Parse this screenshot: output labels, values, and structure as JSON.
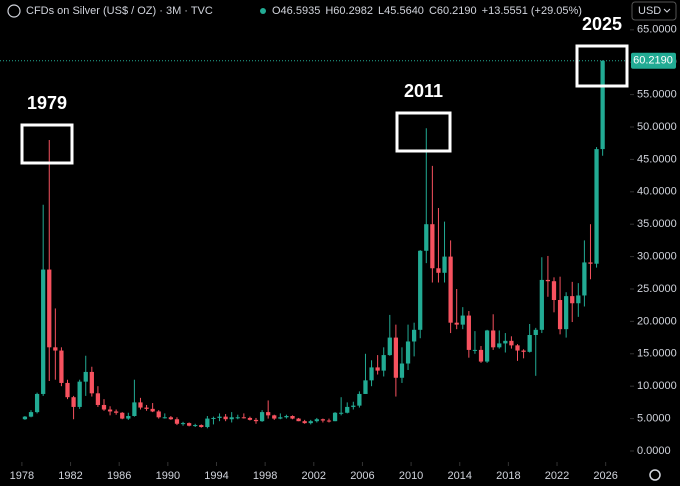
{
  "chart_data": {
    "type": "candlestick",
    "title": "CFDs on Silver (US$ / OZ) · 3M · TVC",
    "ohlc_legend": [
      "O46.5935",
      "H60.2982",
      "L45.5640",
      "C60.2190",
      "+13.5551 (+29.05%)"
    ],
    "currency": "USD",
    "last_price_label": "60.2190",
    "annotations": [
      "1979",
      "2011",
      "2025"
    ],
    "up_color": "#22ab94",
    "down_color": "#f7525f",
    "x": [
      1978,
      1978.5,
      1979,
      1979.5,
      1980,
      1980.5,
      1981,
      1981.5,
      1982,
      1982.5,
      1983,
      1983.5,
      1984,
      1984.5,
      1985,
      1985.5,
      1986,
      1986.5,
      1987,
      1987.5,
      1988,
      1988.5,
      1989,
      1989.5,
      1990,
      1990.5,
      1991,
      1991.5,
      1992,
      1992.5,
      1993,
      1993.5,
      1994,
      1994.5,
      1995,
      1995.5,
      1996,
      1996.5,
      1997,
      1997.5,
      1998,
      1998.5,
      1999,
      1999.5,
      2000,
      2000.5,
      2001,
      2001.5,
      2002,
      2002.5,
      2003,
      2003.5,
      2004,
      2004.5,
      2005,
      2005.5,
      2006,
      2006.5,
      2007,
      2007.5,
      2008,
      2008.5,
      2009,
      2009.5,
      2010,
      2010.5,
      2011,
      2011.5,
      2012,
      2012.5,
      2013,
      2013.5,
      2014,
      2014.5,
      2015,
      2015.5,
      2016,
      2016.5,
      2017,
      2017.5,
      2018,
      2018.5,
      2019,
      2019.5,
      2020,
      2020.5,
      2021,
      2021.5,
      2022,
      2022.5,
      2023,
      2023.5,
      2024,
      2024.5,
      2025,
      2025.5
    ],
    "open": [
      4.9,
      5.3,
      6.0,
      8.8,
      28,
      16,
      15.5,
      10.5,
      8.3,
      6.8,
      10.7,
      12.2,
      8.9,
      7.1,
      6.4,
      6.1,
      5.9,
      5.0,
      5.4,
      7.5,
      6.7,
      6.5,
      6.1,
      5.2,
      5.2,
      4.9,
      4.2,
      4.3,
      3.9,
      4.0,
      3.7,
      5.0,
      5.1,
      5.3,
      4.9,
      5.2,
      5.2,
      5.1,
      4.8,
      4.6,
      6.0,
      5.5,
      5.0,
      5.2,
      5.4,
      5.0,
      4.6,
      4.3,
      4.6,
      4.9,
      4.7,
      4.6,
      5.9,
      5.9,
      6.8,
      7.0,
      8.8,
      10.9,
      12.9,
      12.4,
      14.8,
      17.5,
      11.3,
      13.5,
      16.9,
      18.7,
      30.9,
      35,
      28.2,
      27.5,
      30,
      19.8,
      19.5,
      20.9,
      15.6,
      15.6,
      13.8,
      18.6,
      16,
      16.6,
      17,
      16.3,
      15.5,
      15.3,
      17.9,
      18.7,
      26.4,
      26.2,
      23.3,
      18.8,
      23.9,
      22.8,
      24,
      29.1,
      28.9,
      46.5935
    ],
    "high": [
      5.4,
      6.3,
      9.0,
      38,
      48,
      22,
      16,
      11,
      8.5,
      11,
      14.7,
      13,
      10,
      8,
      6.9,
      6.4,
      6.0,
      5.9,
      11,
      8.2,
      7.1,
      7.4,
      6.3,
      5.8,
      5.4,
      5.2,
      4.5,
      4.4,
      4.2,
      4.1,
      5.4,
      5.3,
      5.8,
      5.7,
      6.0,
      5.6,
      5.8,
      5.3,
      5.1,
      6.3,
      7.8,
      5.6,
      5.8,
      5.6,
      5.5,
      5.1,
      4.8,
      4.8,
      5.1,
      5.0,
      5.0,
      6.0,
      8.3,
      7.5,
      7.6,
      9.2,
      15,
      14,
      14.8,
      16,
      21,
      19.5,
      16,
      19.5,
      19.8,
      31,
      49.8,
      44,
      37.5,
      35.4,
      32.5,
      25,
      22.2,
      21.6,
      18.5,
      16.2,
      18.7,
      21.1,
      18.6,
      18.2,
      17.7,
      16.5,
      15.7,
      19.6,
      19,
      29.9,
      30.1,
      26.8,
      26.9,
      24.5,
      26.1,
      25.9,
      32.5,
      35,
      46.9,
      60.2982
    ],
    "low": [
      4.8,
      5.2,
      5.8,
      8.5,
      10.8,
      11,
      10,
      8,
      4.9,
      6.5,
      8.5,
      8.4,
      6.8,
      6.2,
      5.5,
      5.6,
      4.9,
      4.8,
      5.3,
      6.4,
      6.2,
      6.0,
      5.0,
      5.0,
      4.8,
      4.0,
      3.9,
      3.8,
      3.7,
      3.6,
      3.5,
      4.1,
      4.6,
      4.6,
      4.4,
      4.9,
      5.0,
      4.7,
      4.2,
      4.5,
      5.0,
      4.8,
      4.9,
      5.0,
      4.9,
      4.6,
      4.2,
      4.1,
      4.4,
      4.4,
      4.4,
      4.6,
      5.5,
      5.8,
      6.4,
      6.7,
      8.8,
      10,
      11.8,
      11.5,
      14.7,
      8.4,
      10.5,
      12.5,
      14.6,
      17.4,
      29,
      26,
      26,
      26,
      18.2,
      18.8,
      18.8,
      14.4,
      15,
      13.6,
      13.6,
      15.6,
      15.8,
      15.2,
      15.8,
      13.9,
      14.3,
      15.2,
      11.6,
      18.2,
      23.8,
      21.4,
      18,
      17.5,
      19.9,
      20.7,
      22.3,
      26.5,
      28.3,
      45.564
    ],
    "close": [
      5.3,
      6.0,
      8.8,
      28,
      16,
      15.5,
      10.5,
      8.3,
      6.8,
      10.7,
      12.2,
      8.9,
      7.1,
      6.4,
      6.1,
      5.9,
      5.0,
      5.4,
      7.5,
      6.7,
      6.5,
      6.1,
      5.2,
      5.2,
      4.9,
      4.2,
      4.3,
      3.9,
      4.0,
      3.7,
      5.0,
      5.1,
      5.3,
      4.9,
      5.2,
      5.2,
      5.1,
      4.8,
      4.6,
      6.0,
      5.5,
      5.0,
      5.2,
      5.4,
      5.0,
      4.6,
      4.3,
      4.6,
      4.9,
      4.7,
      4.6,
      5.9,
      5.9,
      6.8,
      7.0,
      8.8,
      10.9,
      12.9,
      12.4,
      14.8,
      17.5,
      11.3,
      13.5,
      16.9,
      18.7,
      30.9,
      35,
      28.2,
      27.5,
      30,
      19.8,
      19.5,
      20.9,
      15.6,
      15.6,
      13.8,
      18.6,
      16,
      16.6,
      17,
      16.3,
      15.5,
      15.3,
      17.9,
      18.7,
      26.4,
      26.2,
      23.3,
      18.8,
      23.9,
      22.8,
      24,
      29.1,
      28.9,
      46.59,
      60.219
    ],
    "xlim": [
      1976.2,
      2028
    ],
    "xticks": [
      1978,
      1982,
      1986,
      1990,
      1994,
      1998,
      2002,
      2006,
      2010,
      2014,
      2018,
      2022,
      2026
    ],
    "ylim": [
      -1.7,
      69.6
    ],
    "yticks": [
      {
        "value": 0,
        "label": "0.0000"
      },
      {
        "value": 5,
        "label": "5.0000"
      },
      {
        "value": 10,
        "label": "10.0000"
      },
      {
        "value": 15,
        "label": "15.0000"
      },
      {
        "value": 20,
        "label": "20.0000"
      },
      {
        "value": 25,
        "label": "25.0000"
      },
      {
        "value": 30,
        "label": "30.0000"
      },
      {
        "value": 35,
        "label": "35.0000"
      },
      {
        "value": 40,
        "label": "40.0000"
      },
      {
        "value": 45,
        "label": "45.0000"
      },
      {
        "value": 50,
        "label": "50.0000"
      },
      {
        "value": 55,
        "label": "55.0000"
      },
      {
        "value": 60,
        "label": "60.0000"
      },
      {
        "value": 65,
        "label": "65.0000"
      }
    ],
    "last_price": 60.219
  }
}
